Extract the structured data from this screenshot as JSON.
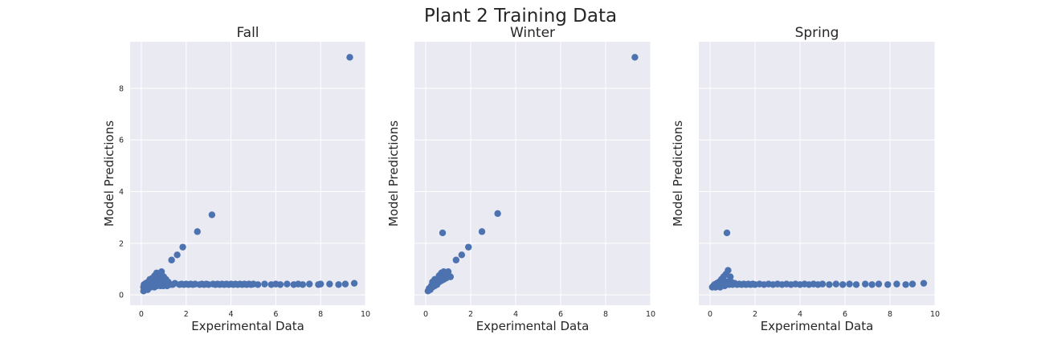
{
  "figure": {
    "title": "Plant 2 Training Data"
  },
  "chart_data": [
    {
      "type": "scatter",
      "title": "Fall",
      "xlabel": "Experimental Data",
      "ylabel": "Model Predictions",
      "xlim": [
        -0.5,
        10
      ],
      "ylim": [
        -0.4,
        9.8
      ],
      "xticks": [
        0,
        2,
        4,
        6,
        8,
        10
      ],
      "yticks": [
        0,
        2,
        4,
        6,
        8
      ],
      "show_yticklabels": true,
      "grid": true,
      "color": "#4c72b0",
      "points": [
        [
          0.1,
          0.15
        ],
        [
          0.1,
          0.3
        ],
        [
          0.12,
          0.4
        ],
        [
          0.15,
          0.35
        ],
        [
          0.18,
          0.25
        ],
        [
          0.2,
          0.45
        ],
        [
          0.22,
          0.3
        ],
        [
          0.25,
          0.4
        ],
        [
          0.28,
          0.2
        ],
        [
          0.3,
          0.5
        ],
        [
          0.32,
          0.35
        ],
        [
          0.35,
          0.3
        ],
        [
          0.38,
          0.6
        ],
        [
          0.4,
          0.45
        ],
        [
          0.42,
          0.3
        ],
        [
          0.45,
          0.55
        ],
        [
          0.48,
          0.4
        ],
        [
          0.5,
          0.65
        ],
        [
          0.52,
          0.35
        ],
        [
          0.55,
          0.5
        ],
        [
          0.58,
          0.3
        ],
        [
          0.6,
          0.75
        ],
        [
          0.62,
          0.45
        ],
        [
          0.65,
          0.6
        ],
        [
          0.68,
          0.85
        ],
        [
          0.7,
          0.35
        ],
        [
          0.72,
          0.55
        ],
        [
          0.75,
          0.7
        ],
        [
          0.78,
          0.4
        ],
        [
          0.8,
          0.8
        ],
        [
          0.82,
          0.5
        ],
        [
          0.85,
          0.35
        ],
        [
          0.88,
          0.65
        ],
        [
          0.9,
          0.9
        ],
        [
          0.92,
          0.45
        ],
        [
          0.95,
          0.55
        ],
        [
          0.98,
          0.35
        ],
        [
          1.0,
          0.7
        ],
        [
          1.05,
          0.4
        ],
        [
          1.1,
          0.6
        ],
        [
          1.15,
          0.35
        ],
        [
          1.2,
          0.5
        ],
        [
          1.3,
          0.4
        ],
        [
          1.35,
          1.35
        ],
        [
          1.4,
          0.4
        ],
        [
          1.5,
          0.45
        ],
        [
          1.6,
          1.55
        ],
        [
          1.7,
          0.4
        ],
        [
          1.8,
          0.42
        ],
        [
          1.85,
          1.85
        ],
        [
          1.9,
          0.4
        ],
        [
          2.0,
          0.42
        ],
        [
          2.1,
          0.4
        ],
        [
          2.2,
          0.42
        ],
        [
          2.3,
          0.4
        ],
        [
          2.4,
          0.42
        ],
        [
          2.5,
          2.45
        ],
        [
          2.6,
          0.4
        ],
        [
          2.7,
          0.42
        ],
        [
          2.8,
          0.4
        ],
        [
          2.9,
          0.42
        ],
        [
          3.0,
          0.4
        ],
        [
          3.15,
          3.1
        ],
        [
          3.2,
          0.42
        ],
        [
          3.3,
          0.4
        ],
        [
          3.4,
          0.42
        ],
        [
          3.5,
          0.4
        ],
        [
          3.6,
          0.42
        ],
        [
          3.7,
          0.4
        ],
        [
          3.8,
          0.42
        ],
        [
          3.9,
          0.4
        ],
        [
          4.0,
          0.42
        ],
        [
          4.1,
          0.4
        ],
        [
          4.2,
          0.42
        ],
        [
          4.3,
          0.4
        ],
        [
          4.4,
          0.42
        ],
        [
          4.5,
          0.4
        ],
        [
          4.6,
          0.42
        ],
        [
          4.7,
          0.4
        ],
        [
          4.8,
          0.42
        ],
        [
          4.9,
          0.4
        ],
        [
          5.0,
          0.42
        ],
        [
          5.2,
          0.4
        ],
        [
          5.5,
          0.42
        ],
        [
          5.8,
          0.4
        ],
        [
          6.0,
          0.42
        ],
        [
          6.2,
          0.4
        ],
        [
          6.5,
          0.42
        ],
        [
          6.8,
          0.4
        ],
        [
          7.0,
          0.42
        ],
        [
          7.2,
          0.4
        ],
        [
          7.5,
          0.42
        ],
        [
          7.9,
          0.4
        ],
        [
          8.0,
          0.42
        ],
        [
          8.4,
          0.42
        ],
        [
          8.8,
          0.4
        ],
        [
          9.1,
          0.42
        ],
        [
          9.5,
          0.45
        ],
        [
          9.3,
          9.2
        ]
      ]
    },
    {
      "type": "scatter",
      "title": "Winter",
      "xlabel": "Experimental Data",
      "ylabel": "Model Predictions",
      "xlim": [
        -0.5,
        10
      ],
      "ylim": [
        -0.4,
        9.8
      ],
      "xticks": [
        0,
        2,
        4,
        6,
        8,
        10
      ],
      "yticks": [
        0,
        2,
        4,
        6,
        8
      ],
      "show_yticklabels": false,
      "grid": true,
      "color": "#4c72b0",
      "points": [
        [
          0.1,
          0.15
        ],
        [
          0.15,
          0.25
        ],
        [
          0.2,
          0.2
        ],
        [
          0.25,
          0.35
        ],
        [
          0.3,
          0.3
        ],
        [
          0.3,
          0.5
        ],
        [
          0.35,
          0.4
        ],
        [
          0.4,
          0.35
        ],
        [
          0.4,
          0.6
        ],
        [
          0.45,
          0.45
        ],
        [
          0.5,
          0.55
        ],
        [
          0.5,
          0.4
        ],
        [
          0.55,
          0.65
        ],
        [
          0.6,
          0.5
        ],
        [
          0.6,
          0.75
        ],
        [
          0.65,
          0.6
        ],
        [
          0.7,
          0.85
        ],
        [
          0.7,
          0.55
        ],
        [
          0.75,
          0.7
        ],
        [
          0.8,
          0.9
        ],
        [
          0.8,
          0.6
        ],
        [
          0.85,
          0.75
        ],
        [
          0.9,
          0.65
        ],
        [
          0.9,
          0.85
        ],
        [
          0.95,
          0.8
        ],
        [
          1.0,
          0.9
        ],
        [
          1.0,
          0.7
        ],
        [
          1.1,
          0.7
        ],
        [
          0.75,
          2.4
        ],
        [
          1.35,
          1.35
        ],
        [
          1.6,
          1.55
        ],
        [
          1.9,
          1.85
        ],
        [
          2.5,
          2.45
        ],
        [
          3.2,
          3.15
        ],
        [
          9.3,
          9.2
        ]
      ]
    },
    {
      "type": "scatter",
      "title": "Spring",
      "xlabel": "Experimental Data",
      "ylabel": "Model Predictions",
      "xlim": [
        -0.5,
        10
      ],
      "ylim": [
        -0.4,
        9.8
      ],
      "xticks": [
        0,
        2,
        4,
        6,
        8,
        10
      ],
      "yticks": [
        0,
        2,
        4,
        6,
        8
      ],
      "show_yticklabels": false,
      "grid": true,
      "color": "#4c72b0",
      "points": [
        [
          0.1,
          0.3
        ],
        [
          0.15,
          0.35
        ],
        [
          0.2,
          0.4
        ],
        [
          0.25,
          0.3
        ],
        [
          0.3,
          0.45
        ],
        [
          0.35,
          0.35
        ],
        [
          0.4,
          0.5
        ],
        [
          0.45,
          0.3
        ],
        [
          0.5,
          0.6
        ],
        [
          0.55,
          0.4
        ],
        [
          0.6,
          0.7
        ],
        [
          0.65,
          0.35
        ],
        [
          0.7,
          0.8
        ],
        [
          0.75,
          0.5
        ],
        [
          0.8,
          0.95
        ],
        [
          0.85,
          0.4
        ],
        [
          0.9,
          0.7
        ],
        [
          0.95,
          0.5
        ],
        [
          1.0,
          0.4
        ],
        [
          1.1,
          0.45
        ],
        [
          0.75,
          2.4
        ],
        [
          1.2,
          0.4
        ],
        [
          1.3,
          0.42
        ],
        [
          1.4,
          0.4
        ],
        [
          1.5,
          0.42
        ],
        [
          1.6,
          0.4
        ],
        [
          1.7,
          0.42
        ],
        [
          1.8,
          0.4
        ],
        [
          1.9,
          0.42
        ],
        [
          2.0,
          0.4
        ],
        [
          2.2,
          0.42
        ],
        [
          2.4,
          0.4
        ],
        [
          2.6,
          0.42
        ],
        [
          2.8,
          0.4
        ],
        [
          3.0,
          0.42
        ],
        [
          3.2,
          0.4
        ],
        [
          3.4,
          0.42
        ],
        [
          3.6,
          0.4
        ],
        [
          3.8,
          0.42
        ],
        [
          4.0,
          0.4
        ],
        [
          4.2,
          0.42
        ],
        [
          4.4,
          0.4
        ],
        [
          4.6,
          0.42
        ],
        [
          4.8,
          0.4
        ],
        [
          5.0,
          0.42
        ],
        [
          5.3,
          0.4
        ],
        [
          5.6,
          0.42
        ],
        [
          5.9,
          0.4
        ],
        [
          6.2,
          0.42
        ],
        [
          6.5,
          0.4
        ],
        [
          6.9,
          0.42
        ],
        [
          7.2,
          0.4
        ],
        [
          7.5,
          0.42
        ],
        [
          7.9,
          0.4
        ],
        [
          8.3,
          0.42
        ],
        [
          8.7,
          0.4
        ],
        [
          9.0,
          0.42
        ],
        [
          9.5,
          0.45
        ]
      ]
    }
  ]
}
